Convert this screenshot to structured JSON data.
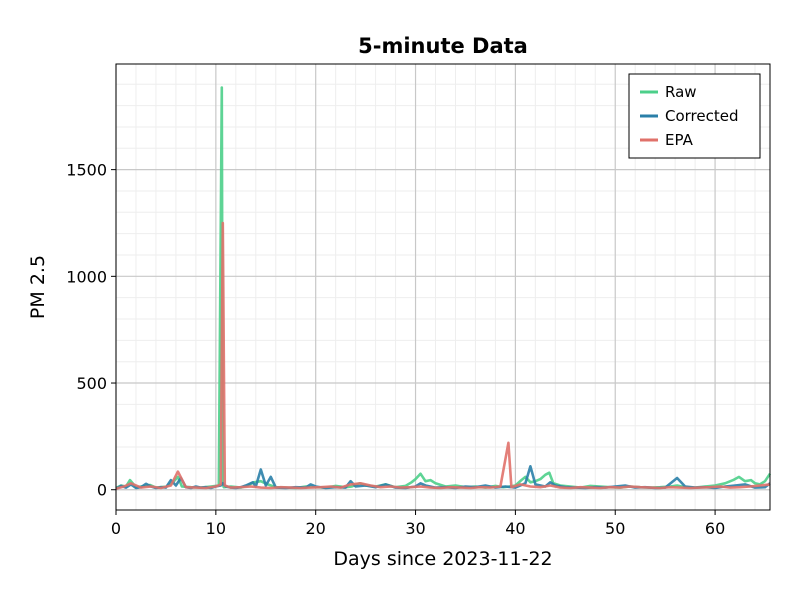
{
  "chart_data": {
    "type": "line",
    "title": "5-minute Data",
    "xlabel": "Days since 2023-11-22",
    "ylabel": "PM 2.5",
    "xlim": [
      0,
      65.5
    ],
    "ylim": [
      -95,
      1995
    ],
    "x_ticks": [
      0,
      10,
      20,
      30,
      40,
      50,
      60
    ],
    "y_ticks": [
      0,
      500,
      1000,
      1500
    ],
    "grid": true,
    "minor_grid": true,
    "legend_position": "top-right",
    "series": [
      {
        "name": "Raw",
        "color": "#4ccf8a",
        "x": [
          0,
          0.5,
          1.0,
          1.4,
          2.0,
          3.0,
          3.4,
          4.0,
          5.0,
          5.6,
          6.2,
          6.6,
          7.5,
          8.5,
          9.5,
          10.3,
          10.6,
          10.7,
          10.8,
          11.5,
          12.5,
          13.2,
          13.8,
          14.5,
          15.2,
          16.0,
          17.0,
          18.0,
          19.0,
          20.0,
          21.0,
          22.0,
          23.0,
          23.6,
          24.4,
          25.0,
          26.0,
          27.0,
          28.0,
          29.0,
          29.6,
          30.0,
          30.5,
          31.0,
          31.5,
          32.0,
          33.0,
          34.0,
          35.0,
          36.0,
          37.0,
          38.0,
          38.8,
          39.4,
          40.0,
          40.6,
          41.0,
          41.5,
          42.0,
          42.5,
          43.0,
          43.4,
          43.8,
          44.5,
          45.5,
          46.5,
          47.5,
          48.5,
          49.5,
          50.5,
          51.5,
          52.5,
          53.5,
          54.5,
          55.5,
          56.2,
          57.0,
          58.0,
          59.0,
          60.0,
          61.0,
          61.8,
          62.4,
          63.0,
          63.6,
          64.0,
          64.5,
          65.0,
          65.5
        ],
        "y": [
          8,
          20,
          15,
          45,
          12,
          18,
          22,
          10,
          14,
          30,
          60,
          15,
          12,
          10,
          15,
          20,
          1885,
          25,
          12,
          15,
          10,
          20,
          35,
          40,
          25,
          12,
          10,
          8,
          15,
          12,
          10,
          18,
          12,
          15,
          30,
          20,
          15,
          25,
          12,
          18,
          35,
          50,
          75,
          40,
          45,
          30,
          15,
          20,
          12,
          15,
          10,
          18,
          12,
          15,
          20,
          45,
          60,
          35,
          40,
          50,
          70,
          80,
          30,
          20,
          15,
          10,
          18,
          15,
          12,
          10,
          15,
          12,
          10,
          12,
          15,
          20,
          12,
          10,
          15,
          20,
          30,
          45,
          60,
          40,
          45,
          30,
          25,
          40,
          75
        ]
      },
      {
        "name": "Corrected",
        "color": "#2a7fa8",
        "x": [
          0,
          0.5,
          1.0,
          1.5,
          2.0,
          2.5,
          3.0,
          3.5,
          4.0,
          4.5,
          5.0,
          5.5,
          6.0,
          6.5,
          7.0,
          7.5,
          8.0,
          8.5,
          9.0,
          9.5,
          10.0,
          10.5,
          10.7,
          11.0,
          11.5,
          12.0,
          12.5,
          13.0,
          13.7,
          14.0,
          14.5,
          15.0,
          15.5,
          16.0,
          17.0,
          18.0,
          19.0,
          19.5,
          20.0,
          21.0,
          22.0,
          23.0,
          23.5,
          24.0,
          25.0,
          26.0,
          27.0,
          28.0,
          29.0,
          30.0,
          30.5,
          31.0,
          32.0,
          33.0,
          34.0,
          35.0,
          36.0,
          37.0,
          38.0,
          39.0,
          40.0,
          41.0,
          41.5,
          42.0,
          43.0,
          43.5,
          44.0,
          45.0,
          46.0,
          47.0,
          48.0,
          49.0,
          50.0,
          51.0,
          52.0,
          53.0,
          54.0,
          55.0,
          56.2,
          57.0,
          58.0,
          59.0,
          60.0,
          61.0,
          62.0,
          63.0,
          64.0,
          65.0,
          65.5
        ],
        "y": [
          5,
          18,
          10,
          25,
          8,
          12,
          28,
          15,
          8,
          12,
          10,
          45,
          20,
          55,
          12,
          8,
          15,
          10,
          12,
          8,
          15,
          20,
          30,
          15,
          10,
          8,
          12,
          20,
          35,
          15,
          95,
          20,
          60,
          10,
          8,
          12,
          10,
          25,
          15,
          8,
          12,
          10,
          40,
          15,
          20,
          12,
          25,
          10,
          8,
          15,
          30,
          20,
          10,
          12,
          8,
          15,
          12,
          20,
          10,
          15,
          10,
          30,
          110,
          25,
          15,
          35,
          20,
          12,
          10,
          8,
          12,
          10,
          15,
          20,
          10,
          12,
          8,
          10,
          55,
          15,
          10,
          12,
          8,
          15,
          20,
          25,
          10,
          12,
          30
        ]
      },
      {
        "name": "EPA",
        "color": "#e0716a",
        "x": [
          0,
          0.8,
          1.5,
          2.5,
          3.5,
          4.5,
          5.5,
          6.2,
          7.0,
          8.0,
          9.0,
          10.0,
          10.5,
          10.7,
          10.9,
          11.5,
          12.5,
          13.5,
          14.5,
          15.5,
          16.5,
          17.5,
          18.5,
          19.5,
          20.5,
          21.5,
          22.5,
          23.5,
          24.5,
          25.5,
          26.5,
          27.5,
          28.5,
          29.5,
          30.5,
          31.5,
          32.5,
          33.5,
          34.5,
          35.5,
          36.5,
          37.5,
          38.5,
          39.3,
          39.6,
          40.5,
          41.5,
          42.5,
          43.5,
          44.5,
          45.5,
          46.5,
          47.5,
          48.5,
          49.5,
          50.5,
          51.5,
          52.5,
          53.5,
          54.5,
          55.5,
          56.5,
          57.5,
          58.5,
          59.5,
          60.5,
          61.5,
          62.5,
          63.5,
          64.5,
          65.5
        ],
        "y": [
          5,
          15,
          30,
          10,
          15,
          8,
          20,
          85,
          12,
          10,
          8,
          15,
          25,
          1250,
          20,
          10,
          12,
          15,
          10,
          8,
          12,
          10,
          8,
          10,
          12,
          15,
          10,
          25,
          30,
          20,
          12,
          15,
          10,
          12,
          15,
          10,
          8,
          12,
          10,
          8,
          12,
          10,
          15,
          220,
          12,
          25,
          15,
          12,
          20,
          10,
          8,
          12,
          10,
          8,
          12,
          10,
          15,
          12,
          10,
          8,
          12,
          10,
          8,
          10,
          12,
          15,
          10,
          12,
          15,
          20,
          25
        ]
      }
    ]
  }
}
